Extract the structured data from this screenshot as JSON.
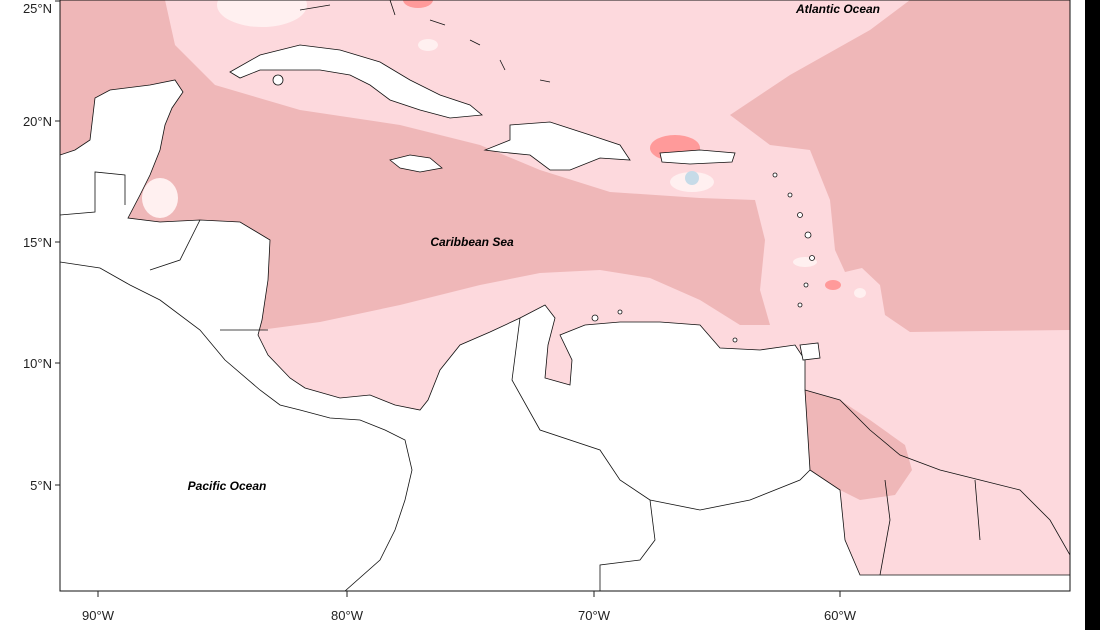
{
  "map": {
    "x_ticks": [
      "90°W",
      "80°W",
      "70°W",
      "60°W"
    ],
    "y_ticks": [
      "25°N",
      "20°N",
      "15°N",
      "10°N",
      "5°N"
    ],
    "labels": {
      "atlantic": "Atlantic Ocean",
      "caribbean": "Caribbean Sea",
      "pacific": "Pacific Ocean"
    },
    "colors": {
      "high": "#efb7b8",
      "medium": "#fdd9dd",
      "low": "#fff0f0",
      "peak": "#ff9a9a",
      "negative": "#c6dbe8",
      "land": "#ffffff"
    }
  }
}
